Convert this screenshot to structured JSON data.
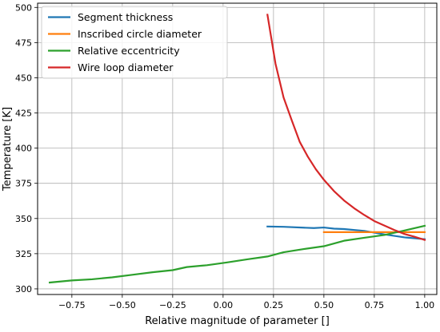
{
  "chart_data": {
    "type": "line",
    "title": "",
    "xlabel": "Relative magnitude of parameter []",
    "ylabel": "Temperature [K]",
    "xlim": [
      -0.92,
      1.06
    ],
    "ylim": [
      296,
      503
    ],
    "grid": true,
    "legend_position": "top-left",
    "x_ticks": [
      -0.75,
      -0.5,
      -0.25,
      0.0,
      0.25,
      0.5,
      0.75,
      1.0
    ],
    "x_tick_labels": [
      "−0.75",
      "−0.50",
      "−0.25",
      "0.00",
      "0.25",
      "0.50",
      "0.75",
      "1.00"
    ],
    "y_ticks": [
      300,
      325,
      350,
      375,
      400,
      425,
      450,
      475,
      500
    ],
    "y_tick_labels": [
      "300",
      "325",
      "350",
      "375",
      "400",
      "425",
      "450",
      "475",
      "500"
    ],
    "series": [
      {
        "name": "Segment thickness",
        "color": "#1f77b4",
        "x": [
          0.22,
          0.3,
          0.4,
          0.45,
          0.5,
          0.55,
          0.6,
          0.7,
          0.8,
          0.9,
          1.0
        ],
        "y": [
          344.3,
          344.1,
          343.5,
          343.2,
          343.6,
          342.8,
          342.5,
          341.2,
          338.7,
          336.6,
          335.3
        ]
      },
      {
        "name": "Inscribed circle diameter",
        "color": "#ff7f0e",
        "x": [
          0.5,
          0.6,
          0.7,
          0.8,
          0.9,
          1.0
        ],
        "y": [
          340.3,
          340.3,
          340.3,
          340.3,
          340.3,
          340.3
        ]
      },
      {
        "name": "Relative eccentricity",
        "color": "#2ca02c",
        "x": [
          -0.86,
          -0.75,
          -0.65,
          -0.55,
          -0.45,
          -0.35,
          -0.25,
          -0.18,
          -0.08,
          0.02,
          0.12,
          0.22,
          0.3,
          0.4,
          0.5,
          0.6,
          0.7,
          0.8,
          0.9,
          1.0
        ],
        "y": [
          304.5,
          306.0,
          306.8,
          308.2,
          310.0,
          311.8,
          313.3,
          315.5,
          316.8,
          318.8,
          321.0,
          323.0,
          326.0,
          328.3,
          330.3,
          334.2,
          336.3,
          338.3,
          341.5,
          344.8
        ]
      },
      {
        "name": "Wire loop diameter",
        "color": "#d62728",
        "x": [
          0.22,
          0.26,
          0.3,
          0.34,
          0.38,
          0.42,
          0.46,
          0.5,
          0.55,
          0.6,
          0.65,
          0.7,
          0.75,
          0.8,
          0.85,
          0.9,
          0.95,
          1.0
        ],
        "y": [
          494.8,
          460.0,
          436.0,
          420.0,
          404.5,
          394.0,
          385.0,
          377.5,
          369.5,
          362.8,
          357.3,
          352.5,
          348.2,
          345.0,
          341.8,
          339.0,
          337.0,
          334.8
        ]
      }
    ]
  }
}
